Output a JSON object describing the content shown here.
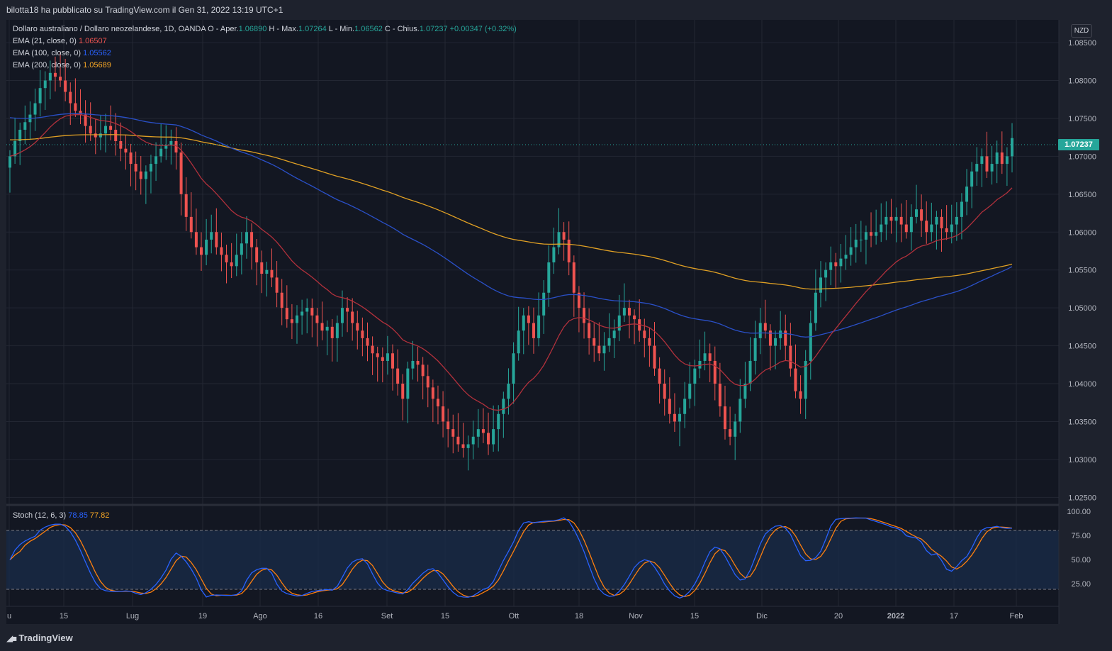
{
  "header": {
    "publish_text": "bilotta18 ha pubblicato su TradingView.com il Gen 31, 2022 13:19 UTC+1"
  },
  "legend": {
    "symbol": "Dollaro australiano / Dollaro neozelandese, 1D, OANDA",
    "open_label": "O - Aper.",
    "open_value": "1.06890",
    "high_label": "H - Max.",
    "high_value": "1.07264",
    "low_label": "L - Min.",
    "low_value": "1.06562",
    "close_label": "C - Chius.",
    "close_value": "1.07237",
    "change": "+0.00347 (+0.32%)",
    "ema21_label": "EMA (21, close, 0)",
    "ema21_value": "1.06507",
    "ema100_label": "EMA (100, close, 0)",
    "ema100_value": "1.05562",
    "ema200_label": "EMA (200, close, 0)",
    "ema200_value": "1.05689",
    "stoch_label": "Stoch (12, 6, 3)",
    "stoch_k": "78.85",
    "stoch_d": "77.82"
  },
  "currency_button": "NZD",
  "last_price_tag": "1.07237",
  "price_axis": [
    "1.08500",
    "1.08000",
    "1.07500",
    "1.07000",
    "1.06500",
    "1.06000",
    "1.05500",
    "1.05000",
    "1.04500",
    "1.04000",
    "1.03500",
    "1.03000",
    "1.02500"
  ],
  "stoch_axis": [
    "100.00",
    "75.00",
    "50.00",
    "25.00"
  ],
  "time_axis": [
    "u",
    "15",
    "Lug",
    "19",
    "Ago",
    "16",
    "Set",
    "15",
    "Ott",
    "18",
    "Nov",
    "15",
    "Dic",
    "20",
    "2022",
    "17",
    "Feb"
  ],
  "footer": {
    "brand": "TradingView"
  },
  "colors": {
    "background": "#131722",
    "up": "#26a69a",
    "down": "#ef5350",
    "ema21": "#b2313c",
    "ema100": "#2a50c8",
    "ema200": "#e0a024",
    "stoch_k": "#2962ff",
    "stoch_d": "#ff7f0e"
  },
  "chart_data": {
    "type": "candlestick",
    "symbol": "AUDNZD",
    "timeframe": "1D",
    "y_range": [
      1.024,
      1.088
    ],
    "ohlc_close_series": [
      1.07,
      1.072,
      1.0735,
      1.0745,
      1.0755,
      1.077,
      1.079,
      1.08,
      1.081,
      1.0805,
      1.08,
      1.0785,
      1.077,
      1.076,
      1.0755,
      1.074,
      1.073,
      1.0725,
      1.073,
      1.074,
      1.0735,
      1.072,
      1.071,
      1.0705,
      1.069,
      1.068,
      1.067,
      1.068,
      1.069,
      1.07,
      1.071,
      1.0715,
      1.072,
      1.0705,
      1.065,
      1.062,
      1.06,
      1.058,
      1.057,
      1.059,
      1.06,
      1.058,
      1.057,
      1.056,
      1.0555,
      1.057,
      1.0585,
      1.06,
      1.058,
      1.056,
      1.0545,
      1.055,
      1.054,
      1.052,
      1.05,
      1.0485,
      1.048,
      1.049,
      1.0495,
      1.05,
      1.049,
      1.048,
      1.047,
      1.0475,
      1.046,
      1.048,
      1.05,
      1.0495,
      1.048,
      1.047,
      1.046,
      1.045,
      1.044,
      1.0435,
      1.043,
      1.044,
      1.042,
      1.04,
      1.038,
      1.042,
      1.043,
      1.0425,
      1.041,
      1.0395,
      1.038,
      1.037,
      1.035,
      1.034,
      1.033,
      1.032,
      1.0315,
      1.032,
      1.033,
      1.034,
      1.0335,
      1.032,
      1.034,
      1.036,
      1.038,
      1.04,
      1.044,
      1.047,
      1.049,
      1.048,
      1.046,
      1.049,
      1.052,
      1.056,
      1.058,
      1.06,
      1.059,
      1.056,
      1.052,
      1.05,
      1.048,
      1.046,
      1.045,
      1.044,
      1.045,
      1.046,
      1.047,
      1.049,
      1.05,
      1.049,
      1.0485,
      1.047,
      1.046,
      1.045,
      1.042,
      1.04,
      1.038,
      1.036,
      1.035,
      1.036,
      1.038,
      1.04,
      1.042,
      1.043,
      1.044,
      1.043,
      1.04,
      1.037,
      1.034,
      1.033,
      1.035,
      1.038,
      1.04,
      1.043,
      1.046,
      1.048,
      1.047,
      1.045,
      1.046,
      1.047,
      1.045,
      1.042,
      1.039,
      1.038,
      1.043,
      1.048,
      1.052,
      1.054,
      1.055,
      1.056,
      1.0555,
      1.0565,
      1.057,
      1.058,
      1.059,
      1.059,
      1.06,
      1.0595,
      1.06,
      1.061,
      1.062,
      1.0615,
      1.062,
      1.061,
      1.06,
      1.062,
      1.063,
      1.0615,
      1.06,
      1.061,
      1.062,
      1.0605,
      1.06,
      1.061,
      1.062,
      1.064,
      1.066,
      1.068,
      1.069,
      1.07,
      1.068,
      1.069,
      1.0705,
      1.069,
      1.07,
      1.0724
    ],
    "series": [
      {
        "name": "EMA (21, close, 0)",
        "last": 1.06507
      },
      {
        "name": "EMA (100, close, 0)",
        "last": 1.05562
      },
      {
        "name": "EMA (200, close, 0)",
        "last": 1.05689
      },
      {
        "name": "Stoch %K",
        "last": 78.85
      },
      {
        "name": "Stoch %D",
        "last": 77.82
      }
    ]
  }
}
